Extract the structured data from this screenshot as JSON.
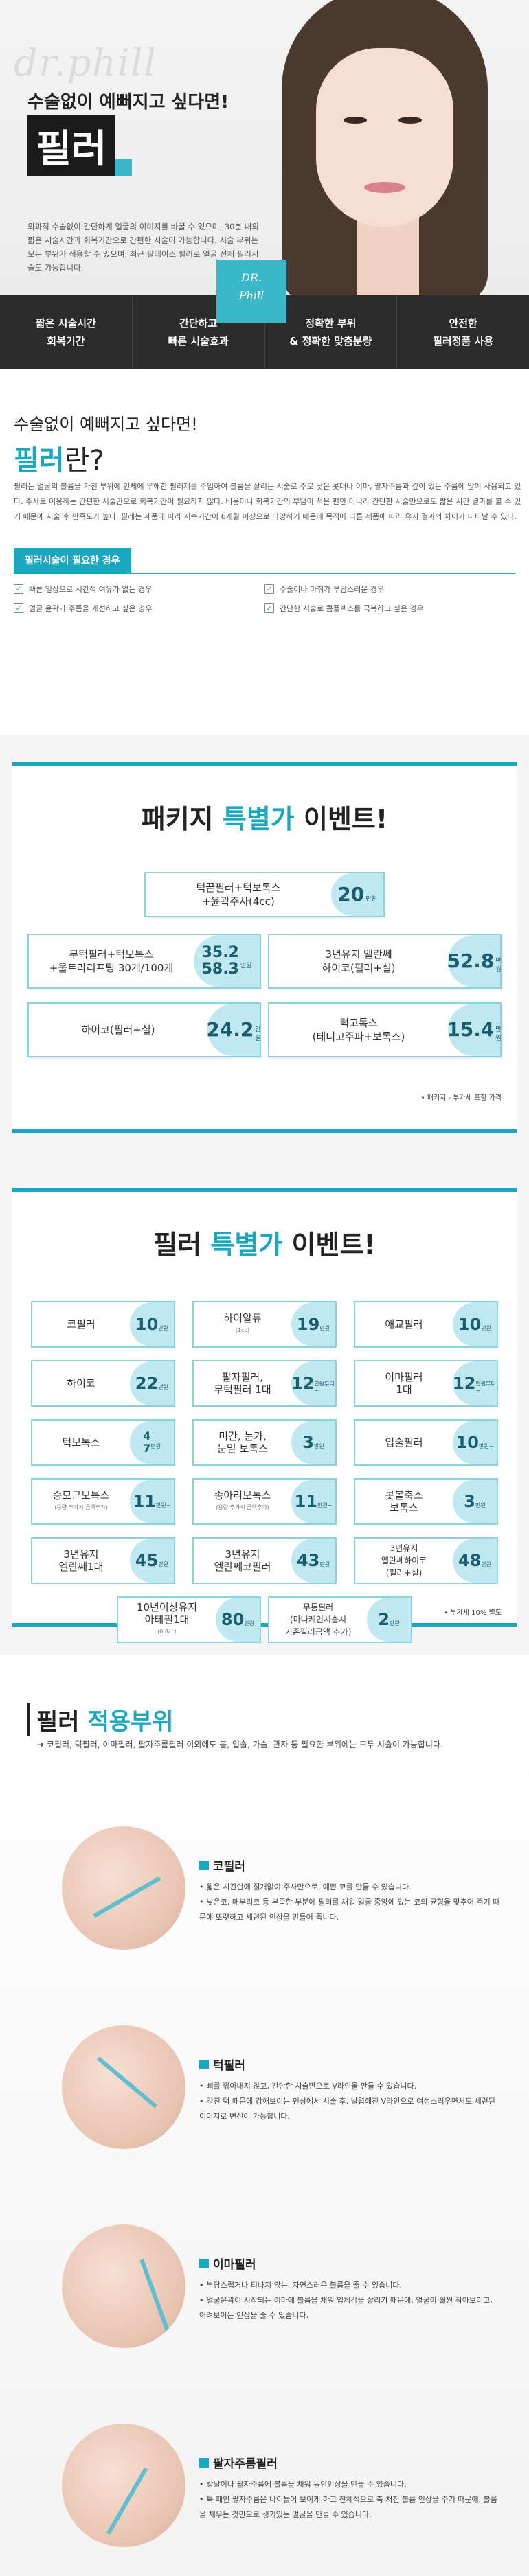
{
  "hero": {
    "watermark": "dr.phill",
    "subtitle": "수술없이 예뻐지고 싶다면!",
    "title": "필러",
    "description": "외과적 수술없이 간단하게 얼굴의 이미지를 바꿀 수 있으며, 30분 내외 짧은 시술시간과 회복기간으로 간편한 시술이 가능합니다. 시술 부위는 모든 부위가 적용할 수 있으며, 최근 팔레이스 필러로 얼굴 전체 필러시술도 가능합니다.",
    "badge_line1": "DR.",
    "badge_line2": "Phill",
    "features": [
      {
        "line1": "짧은 시술시간",
        "line2": "회복기간"
      },
      {
        "line1": "간단하고",
        "line2": "빠른 시술효과"
      },
      {
        "line1": "정확한 부위",
        "line2": "& 정확한 맞춤분량"
      },
      {
        "line1": "안전한",
        "line2": "필러정품 사용"
      }
    ]
  },
  "intro": {
    "subtitle": "수술없이 예뻐지고 싶다면!",
    "title": "필러",
    "title_suffix": "란?",
    "text": "필러는 얼굴의 볼륨을 가진 부위에 인체에 무해한 필러제를 주입하여 볼륨을 살리는 시술로 주로 낮은 콧대나 이마, 팔자주름과 깊이 있는 주름에 많이 사용되고 있다. 주사로 이용하는 간편한 시술만으로 회복기간이 필요하지 않다. 비용이나 회복기간의 부담이 적은 편안 아니라 간단한 시술만으로도 짧은 시간 결과를 볼 수 있기 때문에 시술 후 만족도가 높다. 필레는 제품에 따라 지속기간이 6개월 이상으로 다양하기 때문에 목적에 따른 제품에 따라 유지 결과의 차이가 나타날 수 있다.",
    "need_title": "필러시술이 필요한 경우",
    "needs": [
      "빠른 일상으로 시간적 여유가 없는 경우",
      "수술이나 마취가 부담스러운 경우",
      "얼굴 윤곽과 주름을 개선하고 싶은 경우",
      "간단한 시술로 콤플렉스를 극복하고 싶은 경우"
    ]
  },
  "package_event": {
    "title_prefix": "패키지 ",
    "title_hl": "특별가",
    "title_suffix": " 이벤트!",
    "items": [
      {
        "label": "턱끝필러+턱보톡스\n+윤곽주사(4cc)",
        "price": "20",
        "unit": "만원"
      },
      {
        "label": "무턱필러+턱보톡스\n+울트라리프팅 30개/100개",
        "price": "35.2\n58.3",
        "unit": "만원"
      },
      {
        "label": "3년유지 엘란쎄\n하이코(필러+실)",
        "price": "52.8",
        "unit": "만원"
      },
      {
        "label": "하이코(필러+실)",
        "price": "24.2",
        "unit": "만원"
      },
      {
        "label": "턱고톡스\n(테너고주파+보톡스)",
        "price": "15.4",
        "unit": "만원"
      }
    ],
    "note": "• 패키지 - 부가세 포함 가격"
  },
  "filler_event": {
    "title_prefix": "필러 ",
    "title_hl": "특별가",
    "title_suffix": " 이벤트!",
    "items": [
      {
        "label": "코필러",
        "sub": "",
        "price": "10",
        "unit": "만원"
      },
      {
        "label": "하이알듀",
        "sub": "(1cc)",
        "price": "19",
        "unit": "만원"
      },
      {
        "label": "애교필러",
        "sub": "",
        "price": "10",
        "unit": "만원"
      },
      {
        "label": "하이코",
        "sub": "",
        "price": "22",
        "unit": "만원"
      },
      {
        "label": "팔자필러,\n무턱필러 1대",
        "sub": "",
        "price": "12",
        "unit": "만원부터~"
      },
      {
        "label": "이마필러\n1대",
        "sub": "",
        "price": "12",
        "unit": "만원부터~"
      },
      {
        "label": "턱보톡스",
        "sub": "",
        "price": "4\n7",
        "unit": "만원"
      },
      {
        "label": "미간, 눈가,\n눈밑 보톡스",
        "sub": "",
        "price": "3",
        "unit": "만원"
      },
      {
        "label": "입술필러",
        "sub": "",
        "price": "10",
        "unit": "만원~"
      },
      {
        "label": "승모근보톡스",
        "sub": "(용량 추가시 금액추가)",
        "price": "11",
        "unit": "만원~"
      },
      {
        "label": "종아리보톡스",
        "sub": "(용량 추가시 금액추가)",
        "price": "11",
        "unit": "만원~"
      },
      {
        "label": "콧볼축소\n보톡스",
        "sub": "",
        "price": "3",
        "unit": "만원"
      },
      {
        "label": "3년유지\n엘란쎄1대",
        "sub": "",
        "price": "45",
        "unit": "만원"
      },
      {
        "label": "3년유지\n엘란쎄코필러",
        "sub": "",
        "price": "43",
        "unit": "만원"
      },
      {
        "label": "3년유지\n엘란쎄하이코\n(필러+실)",
        "sub": "",
        "price": "48",
        "unit": "만원"
      },
      {
        "label": "10년이상유지\n아테필1대",
        "sub": "(0.8cc)",
        "price": "80",
        "unit": "만원"
      },
      {
        "label": "무통필러\n(마나케인시술시\n기존필러금액 추가)",
        "sub": "",
        "price": "2",
        "unit": "만원"
      }
    ],
    "note": "• 부가세 10% 별도"
  },
  "parts": {
    "title_prefix": "필러 ",
    "title_hl": "적용부위",
    "desc": "코필러, 턱필러, 이마필러, 팔자주름필러 이외에도 볼, 입술, 가슴, 관자 등 필요한 부위에는 모두 시술이 가능합니다.",
    "items": [
      {
        "name": "코필러",
        "icon": "nose-injection-icon",
        "lines": [
          "짧은 시간안에 절개없이 주사만으로, 예쁜 코를 만들 수 있습니다.",
          "낮은코, 매부리코 등 부족한 부분에 필러를 채워 얼굴 중앙에 있는 코의 균형을 맞추어 주기 때문에 또렷하고 세련된 인상을 만들어 줍니다."
        ]
      },
      {
        "name": "턱필러",
        "icon": "chin-injection-icon",
        "lines": [
          "뼈를 깎아내지 않고, 간단한 시술만으로 V라인을 만들 수 있습니다.",
          "각진 턱 때문에 강해보이는 인상에서 시술 후, 날렵해진 V라인으로 여성스러우면서도 세련된 이미지로 변신이 가능합니다."
        ]
      },
      {
        "name": "이마필러",
        "icon": "forehead-injection-icon",
        "lines": [
          "부담스럽거나 티나지 않는, 자연스러운 볼륨을 줄 수 있습니다.",
          "얼굴윤곽이 시작되는 이마에 볼륨을 채워 입체감을 살리기 때문에, 얼굴이 훨씬 작아보이고, 어려보이는 인상을 줄 수 있습니다."
        ]
      },
      {
        "name": "팔자주름필러",
        "icon": "nasolabial-injection-icon",
        "lines": [
          "칼날이나 팔자주름에 볼륨을 채워 동안인상을 만들 수 있습니다.",
          "특 패인 팔자주름은 나이들어 보이게 하고 전체적으로 축 처진 볼륨 인상을 주기 때문에, 볼륨을 채우는 것만으로 생기있는 얼굴을 만들 수 있습니다."
        ]
      }
    ]
  },
  "colors": {
    "accent": "#1aa8c0",
    "dark": "#2b2b2b",
    "price_bg": "#bfe8f1"
  }
}
